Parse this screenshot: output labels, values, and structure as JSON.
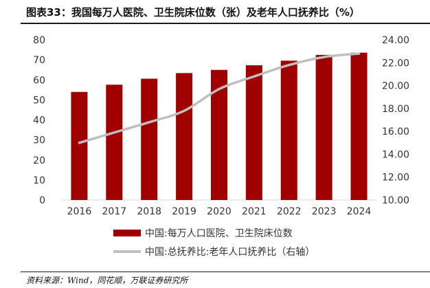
{
  "header": {
    "title": "图表33：我国每万人医院、卫生院床位数（张）及老年人口抚养比（%）"
  },
  "footer": {
    "source": "资料来源：Wind，同花顺，万联证券研究所"
  },
  "colors": {
    "bar": "#a00000",
    "line": "#bfbfbf",
    "axis_text": "#333333",
    "axis_line": "#d9d9d9"
  },
  "chart_data": {
    "type": "bar",
    "categories": [
      "2016",
      "2017",
      "2018",
      "2019",
      "2020",
      "2021",
      "2022",
      "2023",
      "2024"
    ],
    "series": [
      {
        "name": "中国:每万人口医院、卫生院床位数",
        "type": "bar",
        "axis": "left",
        "values": [
          54.0,
          57.6,
          60.6,
          63.4,
          65.0,
          67.3,
          69.6,
          72.5,
          73.6
        ]
      },
      {
        "name": "中国:总抚养比:老年人口抚养比（右轴）",
        "type": "line",
        "axis": "right",
        "values": [
          15.0,
          15.9,
          16.8,
          17.8,
          19.7,
          20.8,
          21.8,
          22.5,
          22.8
        ]
      }
    ],
    "y_left": {
      "lim": [
        0,
        80
      ],
      "ticks": [
        "0",
        "10",
        "20",
        "30",
        "40",
        "50",
        "60",
        "70",
        "80"
      ]
    },
    "y_right": {
      "lim": [
        10,
        24
      ],
      "ticks": [
        "10.00",
        "12.00",
        "14.00",
        "16.00",
        "18.00",
        "20.00",
        "22.00",
        "24.00"
      ]
    },
    "legend_position": "bottom",
    "grid": false
  }
}
